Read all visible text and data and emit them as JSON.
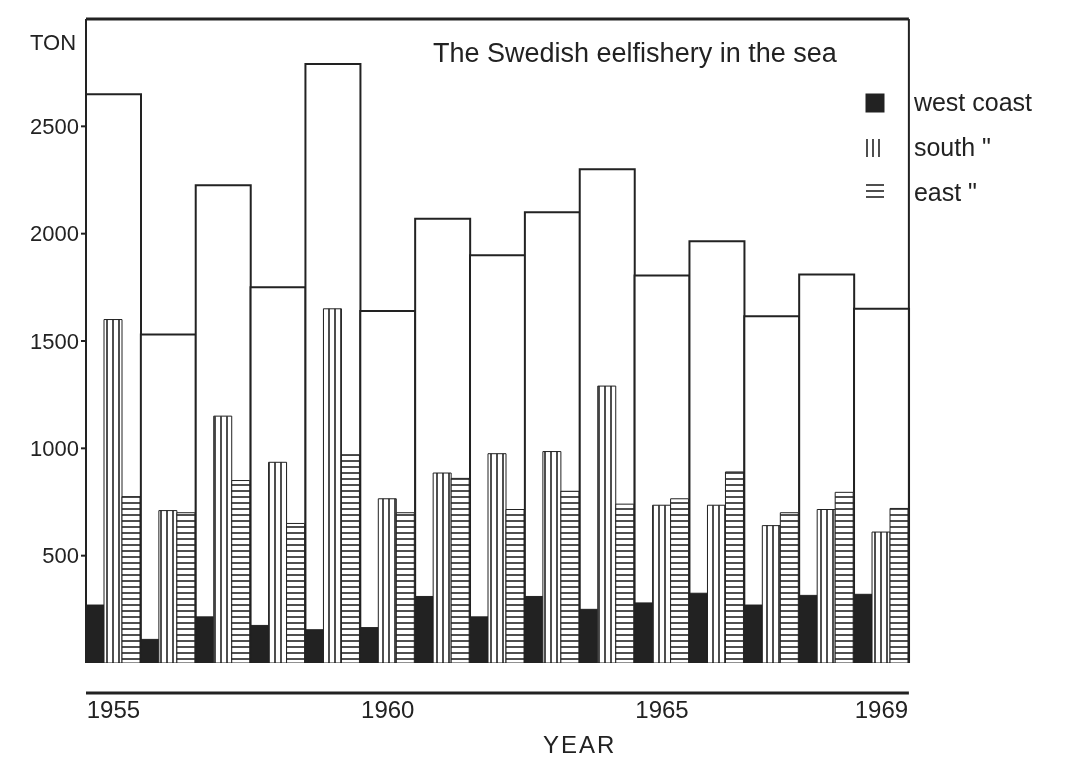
{
  "chart_data": {
    "type": "bar",
    "title": "The Swedish eelfishery in the sea",
    "xlabel": "YEAR",
    "ylabel": "TON",
    "categories": [
      "1955",
      null,
      null,
      null,
      null,
      "1960",
      null,
      null,
      null,
      null,
      "1965",
      null,
      null,
      null,
      "1969"
    ],
    "series": [
      {
        "color": "#ffffff",
        "values": [
          2650,
          1530,
          2225,
          1750,
          2790,
          1640,
          2070,
          1900,
          2100,
          2300,
          1805,
          1965,
          1615,
          1810,
          1650
        ]
      },
      {
        "name": "west coast",
        "color": "#222222",
        "values": [
          270,
          110,
          215,
          175,
          155,
          165,
          310,
          215,
          310,
          250,
          280,
          325,
          270,
          315,
          320
        ]
      },
      {
        "name": "south \"",
        "color": "#222222",
        "values": [
          1600,
          710,
          1150,
          935,
          1650,
          765,
          885,
          975,
          985,
          1290,
          735,
          735,
          640,
          715,
          610
        ]
      },
      {
        "name": "east \"",
        "color": "#222222",
        "values": [
          775,
          700,
          850,
          650,
          970,
          700,
          860,
          715,
          800,
          740,
          765,
          890,
          700,
          795,
          720
        ]
      }
    ],
    "ylim": [
      0,
      3000
    ],
    "yticks": [
      500,
      1000,
      1500,
      2000,
      2500
    ],
    "grid": false,
    "legend": "top right"
  }
}
